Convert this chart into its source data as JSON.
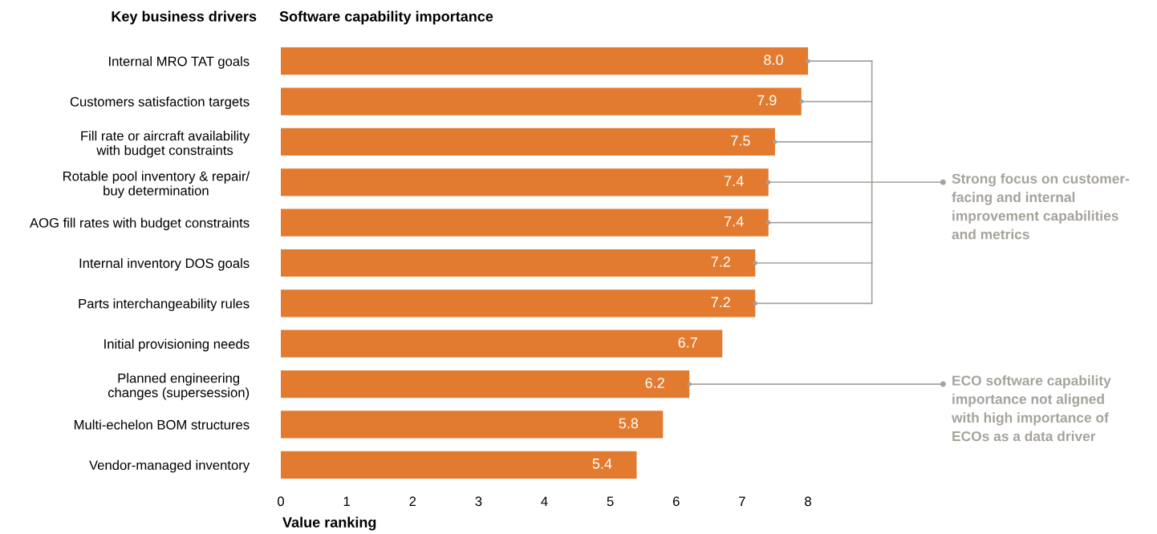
{
  "chart_data": {
    "type": "bar",
    "orientation": "horizontal",
    "title": "Software capability importance",
    "ylabel": "Key business drivers",
    "xlabel": "Value ranking",
    "categories": [
      "Internal MRO TAT goals",
      "Customers satisfaction targets",
      "Fill rate or aircraft availability\nwith budget constraints",
      "Rotable pool inventory & repair/\nbuy determination",
      "AOG fill rates with budget constraints",
      "Internal inventory DOS goals",
      "Parts interchangeability rules",
      "Initial provisioning needs",
      "Planned engineering\nchanges (supersession)",
      "Multi-echelon BOM structures",
      "Vendor-managed inventory"
    ],
    "values": [
      8.0,
      7.9,
      7.5,
      7.4,
      7.4,
      7.2,
      7.2,
      6.7,
      6.2,
      5.8,
      5.4
    ],
    "value_labels": [
      "8.0",
      "7.9",
      "7.5",
      "7.4",
      "7.4",
      "7.2",
      "7.2",
      "6.7",
      "6.2",
      "5.8",
      "5.4"
    ],
    "color": "#e27b30",
    "xlim": [
      0,
      8
    ],
    "xticks": [
      0,
      1,
      2,
      3,
      4,
      5,
      6,
      7,
      8
    ],
    "grid": false,
    "legend": false,
    "annotations": [
      "Strong focus on customer-\nfacing and internal\nimprovement capabilities\nand metrics",
      "ECO software capability\nimportance not aligned\nwith high importance of\nECOs as a data driver"
    ]
  }
}
